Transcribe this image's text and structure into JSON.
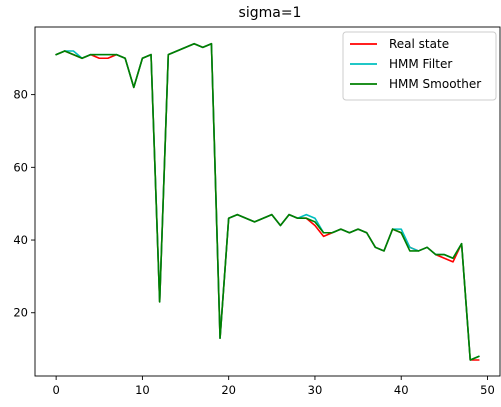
{
  "chart_data": {
    "type": "line",
    "title": "sigma=1",
    "xlabel": "",
    "ylabel": "",
    "xlim": [
      -2.45,
      51.45
    ],
    "ylim": [
      2.6,
      98.6
    ],
    "xticks": [
      0,
      10,
      20,
      30,
      40,
      50
    ],
    "yticks": [
      20,
      40,
      60,
      80
    ],
    "grid": false,
    "legend_position": "upper right",
    "x": [
      0,
      1,
      2,
      3,
      4,
      5,
      6,
      7,
      8,
      9,
      10,
      11,
      12,
      13,
      14,
      15,
      16,
      17,
      18,
      19,
      20,
      21,
      22,
      23,
      24,
      25,
      26,
      27,
      28,
      29,
      30,
      31,
      32,
      33,
      34,
      35,
      36,
      37,
      38,
      39,
      40,
      41,
      42,
      43,
      44,
      45,
      46,
      47,
      48,
      49
    ],
    "series": [
      {
        "name": "Real state",
        "color": "#ff0000",
        "values": [
          91,
          92,
          91,
          90,
          91,
          90,
          90,
          91,
          90,
          82,
          90,
          91,
          23,
          91,
          92,
          93,
          94,
          93,
          94,
          13,
          46,
          47,
          46,
          45,
          46,
          47,
          44,
          47,
          46,
          46,
          44,
          41,
          42,
          43,
          42,
          43,
          42,
          38,
          37,
          43,
          42,
          38,
          37,
          38,
          36,
          35,
          34,
          39,
          7,
          7
        ]
      },
      {
        "name": "HMM Filter",
        "color": "#00bfbf",
        "values": [
          91,
          92,
          92,
          90,
          91,
          91,
          91,
          91,
          90,
          82,
          90,
          91,
          23,
          91,
          92,
          93,
          94,
          93,
          94,
          13,
          46,
          47,
          46,
          45,
          46,
          47,
          44,
          47,
          46,
          47,
          46,
          42,
          42,
          43,
          42,
          43,
          42,
          38,
          37,
          43,
          43,
          38,
          37,
          38,
          36,
          36,
          35,
          39,
          7,
          8
        ]
      },
      {
        "name": "HMM Smoother",
        "color": "#008000",
        "values": [
          91,
          92,
          91,
          90,
          91,
          91,
          91,
          91,
          90,
          82,
          90,
          91,
          23,
          91,
          92,
          93,
          94,
          93,
          94,
          13,
          46,
          47,
          46,
          45,
          46,
          47,
          44,
          47,
          46,
          46,
          45,
          42,
          42,
          43,
          42,
          43,
          42,
          38,
          37,
          43,
          42,
          37,
          37,
          38,
          36,
          36,
          35,
          39,
          7,
          8
        ]
      }
    ]
  }
}
